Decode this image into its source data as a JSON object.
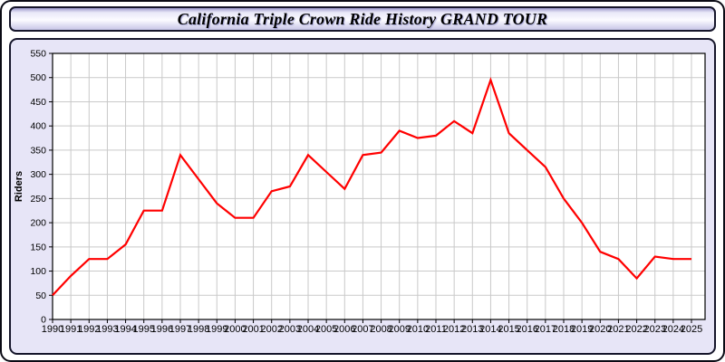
{
  "window": {
    "title": "California Triple Crown Ride History GRAND TOUR"
  },
  "chart_data": {
    "type": "line",
    "title": "California Triple Crown Ride History GRAND TOUR",
    "xlabel": "",
    "ylabel": "Riders",
    "ylim": [
      0,
      550
    ],
    "ytick_step": 50,
    "grid": true,
    "legend_position": "none",
    "line_color": "#ff0000",
    "categories": [
      "1990",
      "1991",
      "1992",
      "1993",
      "1994",
      "1995",
      "1996",
      "1997",
      "1998",
      "1999",
      "2000",
      "2001",
      "2002",
      "2003",
      "2004",
      "2005",
      "2006",
      "2007",
      "2008",
      "2009",
      "2010",
      "2011",
      "2012",
      "2013",
      "2014",
      "2015",
      "2016",
      "2017",
      "2018",
      "2019",
      "2020",
      "2021",
      "2022",
      "2023",
      "2024",
      "2025"
    ],
    "series": [
      {
        "name": "Riders",
        "values": [
          50,
          90,
          125,
          125,
          155,
          225,
          225,
          340,
          290,
          240,
          210,
          210,
          265,
          275,
          340,
          305,
          270,
          340,
          345,
          390,
          375,
          380,
          410,
          385,
          495,
          385,
          350,
          315,
          250,
          200,
          140,
          125,
          85,
          130,
          125,
          125
        ]
      }
    ]
  },
  "colors": {
    "accent_line": "#ff0000",
    "panel_background": "#e7e5f7",
    "plot_background": "#ffffff",
    "grid_line": "#c9c9c9",
    "axis_line": "#000000",
    "title_text": "#000000"
  }
}
